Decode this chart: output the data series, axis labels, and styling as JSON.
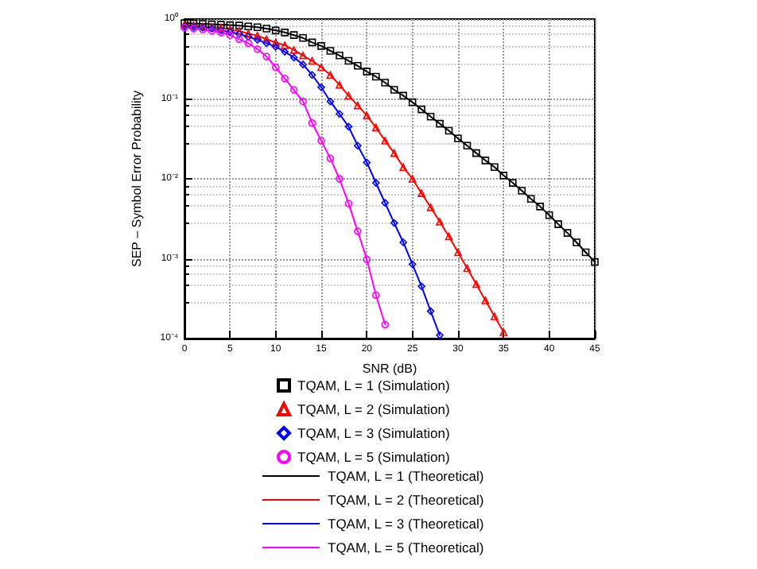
{
  "chart_data": {
    "type": "line",
    "xlabel": "SNR (dB)",
    "ylabel": "SEP – Symbol Error Probability",
    "series": [
      {
        "name": "TQAM, L = 1 (Simulation)",
        "type": "scatter",
        "marker": "square",
        "color": "#000000",
        "x": [
          0,
          1,
          2,
          3,
          4,
          5,
          6,
          7,
          8,
          9,
          10,
          11,
          12,
          13,
          14,
          15,
          16,
          17,
          18,
          19,
          20,
          21,
          22,
          23,
          24,
          25,
          26,
          27,
          28,
          29,
          30,
          31,
          32,
          33,
          34,
          35,
          36,
          37,
          38,
          39,
          40,
          41,
          42,
          43,
          44,
          45
        ],
        "values": [
          0.89,
          0.88,
          0.87,
          0.86,
          0.85,
          0.84,
          0.83,
          0.81,
          0.79,
          0.76,
          0.72,
          0.68,
          0.63,
          0.58,
          0.51,
          0.46,
          0.4,
          0.35,
          0.3,
          0.26,
          0.22,
          0.19,
          0.16,
          0.13,
          0.11,
          0.091,
          0.074,
          0.06,
          0.049,
          0.04,
          0.032,
          0.026,
          0.021,
          0.017,
          0.014,
          0.011,
          0.0089,
          0.0071,
          0.0056,
          0.0045,
          0.0035,
          0.0027,
          0.0021,
          0.0016,
          0.0012,
          0.00091
        ]
      },
      {
        "name": "TQAM, L = 2 (Simulation)",
        "type": "scatter",
        "marker": "triangle",
        "color": "#ff0000",
        "x": [
          0,
          1,
          2,
          3,
          4,
          5,
          6,
          7,
          8,
          9,
          10,
          11,
          12,
          13,
          14,
          15,
          16,
          17,
          18,
          19,
          20,
          21,
          22,
          23,
          24,
          25,
          26,
          27,
          28,
          29,
          30,
          31,
          32,
          33,
          34,
          35
        ],
        "values": [
          0.85,
          0.83,
          0.81,
          0.79,
          0.78,
          0.74,
          0.71,
          0.66,
          0.62,
          0.56,
          0.51,
          0.47,
          0.41,
          0.35,
          0.3,
          0.25,
          0.2,
          0.15,
          0.11,
          0.083,
          0.062,
          0.044,
          0.03,
          0.021,
          0.014,
          0.01,
          0.0066,
          0.0044,
          0.0029,
          0.0019,
          0.0012,
          0.00076,
          0.00048,
          0.0003,
          0.00019,
          0.00012
        ]
      },
      {
        "name": "TQAM, L = 3 (Simulation)",
        "type": "scatter",
        "marker": "diamond",
        "color": "#0000ff",
        "x": [
          0,
          1,
          2,
          3,
          4,
          5,
          6,
          7,
          8,
          9,
          10,
          11,
          12,
          13,
          14,
          15,
          16,
          17,
          18,
          19,
          20,
          21,
          22,
          23,
          24,
          25,
          26,
          27,
          28
        ],
        "values": [
          0.81,
          0.79,
          0.78,
          0.76,
          0.72,
          0.69,
          0.65,
          0.6,
          0.55,
          0.5,
          0.45,
          0.39,
          0.33,
          0.27,
          0.2,
          0.14,
          0.093,
          0.065,
          0.045,
          0.026,
          0.016,
          0.0089,
          0.005,
          0.0028,
          0.0016,
          0.00085,
          0.00045,
          0.00022,
          0.00011
        ]
      },
      {
        "name": "TQAM, L = 5 (Simulation)",
        "type": "scatter",
        "marker": "circle",
        "color": "#ff00ff",
        "x": [
          0,
          1,
          2,
          3,
          4,
          5,
          6,
          7,
          8,
          9,
          10,
          11,
          12,
          13,
          14,
          15,
          16,
          17,
          18,
          19,
          20,
          21,
          22
        ],
        "values": [
          0.78,
          0.76,
          0.74,
          0.71,
          0.68,
          0.63,
          0.56,
          0.5,
          0.42,
          0.34,
          0.25,
          0.18,
          0.13,
          0.093,
          0.05,
          0.03,
          0.018,
          0.01,
          0.0049,
          0.0022,
          0.00098,
          0.00035,
          0.00015
        ]
      },
      {
        "name": "TQAM, L = 1 (Theoretical)",
        "marker": "none",
        "color": "#000000",
        "x": [
          0,
          1,
          2,
          3,
          4,
          5,
          6,
          7,
          8,
          9,
          10,
          11,
          12,
          13,
          14,
          15,
          16,
          17,
          18,
          19,
          20,
          21,
          22,
          23,
          24,
          25,
          26,
          27,
          28,
          29,
          30,
          31,
          32,
          33,
          34,
          35,
          36,
          37,
          38,
          39,
          40,
          41,
          42,
          43,
          44,
          45
        ],
        "values": [
          0.89,
          0.88,
          0.87,
          0.86,
          0.85,
          0.84,
          0.83,
          0.81,
          0.79,
          0.76,
          0.72,
          0.68,
          0.63,
          0.58,
          0.51,
          0.46,
          0.4,
          0.35,
          0.3,
          0.26,
          0.22,
          0.19,
          0.16,
          0.13,
          0.11,
          0.091,
          0.074,
          0.06,
          0.049,
          0.04,
          0.032,
          0.026,
          0.021,
          0.017,
          0.014,
          0.011,
          0.0089,
          0.0071,
          0.0056,
          0.0045,
          0.0035,
          0.0027,
          0.0021,
          0.0016,
          0.0012,
          0.00091
        ]
      },
      {
        "name": "TQAM, L = 2 (Theoretical)",
        "marker": "none",
        "color": "#ff0000",
        "x": [
          0,
          1,
          2,
          3,
          4,
          5,
          6,
          7,
          8,
          9,
          10,
          11,
          12,
          13,
          14,
          15,
          16,
          17,
          18,
          19,
          20,
          21,
          22,
          23,
          24,
          25,
          26,
          27,
          28,
          29,
          30,
          31,
          32,
          33,
          34,
          35
        ],
        "values": [
          0.85,
          0.83,
          0.81,
          0.79,
          0.78,
          0.74,
          0.71,
          0.66,
          0.62,
          0.56,
          0.51,
          0.47,
          0.41,
          0.35,
          0.3,
          0.25,
          0.2,
          0.15,
          0.11,
          0.083,
          0.062,
          0.044,
          0.03,
          0.021,
          0.014,
          0.01,
          0.0066,
          0.0044,
          0.0029,
          0.0019,
          0.0012,
          0.00076,
          0.00048,
          0.0003,
          0.00019,
          0.00012
        ]
      },
      {
        "name": "TQAM, L = 3 (Theoretical)",
        "marker": "none",
        "color": "#0000ff",
        "x": [
          0,
          1,
          2,
          3,
          4,
          5,
          6,
          7,
          8,
          9,
          10,
          11,
          12,
          13,
          14,
          15,
          16,
          17,
          18,
          19,
          20,
          21,
          22,
          23,
          24,
          25,
          26,
          27,
          28
        ],
        "values": [
          0.81,
          0.79,
          0.78,
          0.76,
          0.72,
          0.69,
          0.65,
          0.6,
          0.55,
          0.5,
          0.45,
          0.39,
          0.33,
          0.27,
          0.2,
          0.14,
          0.093,
          0.065,
          0.045,
          0.026,
          0.016,
          0.0089,
          0.005,
          0.0028,
          0.0016,
          0.00085,
          0.00045,
          0.00022,
          0.00011
        ]
      },
      {
        "name": "TQAM, L = 5 (Theoretical)",
        "marker": "none",
        "color": "#ff00ff",
        "x": [
          0,
          1,
          2,
          3,
          4,
          5,
          6,
          7,
          8,
          9,
          10,
          11,
          12,
          13,
          14,
          15,
          16,
          17,
          18,
          19,
          20,
          21,
          22
        ],
        "values": [
          0.78,
          0.76,
          0.74,
          0.71,
          0.68,
          0.63,
          0.56,
          0.5,
          0.42,
          0.34,
          0.25,
          0.18,
          0.13,
          0.093,
          0.05,
          0.03,
          0.018,
          0.01,
          0.0049,
          0.0022,
          0.00098,
          0.00035,
          0.00015
        ]
      }
    ],
    "xlim": [
      0,
      45
    ],
    "xticks": [
      0,
      5,
      10,
      15,
      20,
      25,
      30,
      35,
      40,
      45
    ],
    "ylim": [
      0.0001,
      1
    ],
    "yticks": [
      {
        "value": 0.0001,
        "label": "10⁻⁴"
      },
      {
        "value": 0.001,
        "label": "10⁻³"
      },
      {
        "value": 0.01,
        "label": "10⁻²"
      },
      {
        "value": 0.1,
        "label": "10⁻¹"
      },
      {
        "value": 1,
        "label": "10⁰"
      }
    ],
    "log": "y",
    "grid": true,
    "legend": "bottom"
  }
}
